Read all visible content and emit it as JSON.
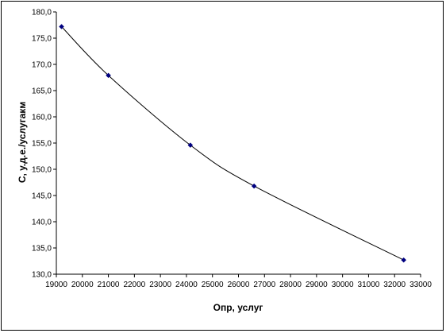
{
  "chart_data": {
    "type": "scatter",
    "title": "",
    "xlabel": "Опр, услуг",
    "ylabel": "C, у.д.е./услугакм",
    "xlim": [
      19000,
      33000
    ],
    "ylim": [
      130.0,
      180.0
    ],
    "x_ticks": [
      19000,
      20000,
      21000,
      22000,
      23000,
      24000,
      25000,
      26000,
      27000,
      28000,
      29000,
      30000,
      31000,
      32000,
      33000
    ],
    "x_tick_labels": [
      "19000",
      "20000",
      "21000",
      "22000",
      "23000",
      "24000",
      "25000",
      "26000",
      "27000",
      "28000",
      "29000",
      "30000",
      "31000",
      "32000",
      "33000"
    ],
    "y_ticks": [
      130.0,
      135.0,
      140.0,
      145.0,
      150.0,
      155.0,
      160.0,
      165.0,
      170.0,
      175.0,
      180.0
    ],
    "y_tick_labels": [
      "130,0",
      "135,0",
      "140,0",
      "145,0",
      "150,0",
      "155,0",
      "160,0",
      "165,0",
      "170,0",
      "175,0",
      "180,0"
    ],
    "grid": false,
    "legend": "none",
    "series": [
      {
        "x": [
          19200,
          21000,
          24150,
          26600,
          32350
        ],
        "y": [
          177.2,
          167.9,
          154.6,
          146.8,
          132.7
        ],
        "marker": "diamond",
        "line": "smooth",
        "color": "#000080",
        "line_color": "#000000"
      }
    ]
  }
}
